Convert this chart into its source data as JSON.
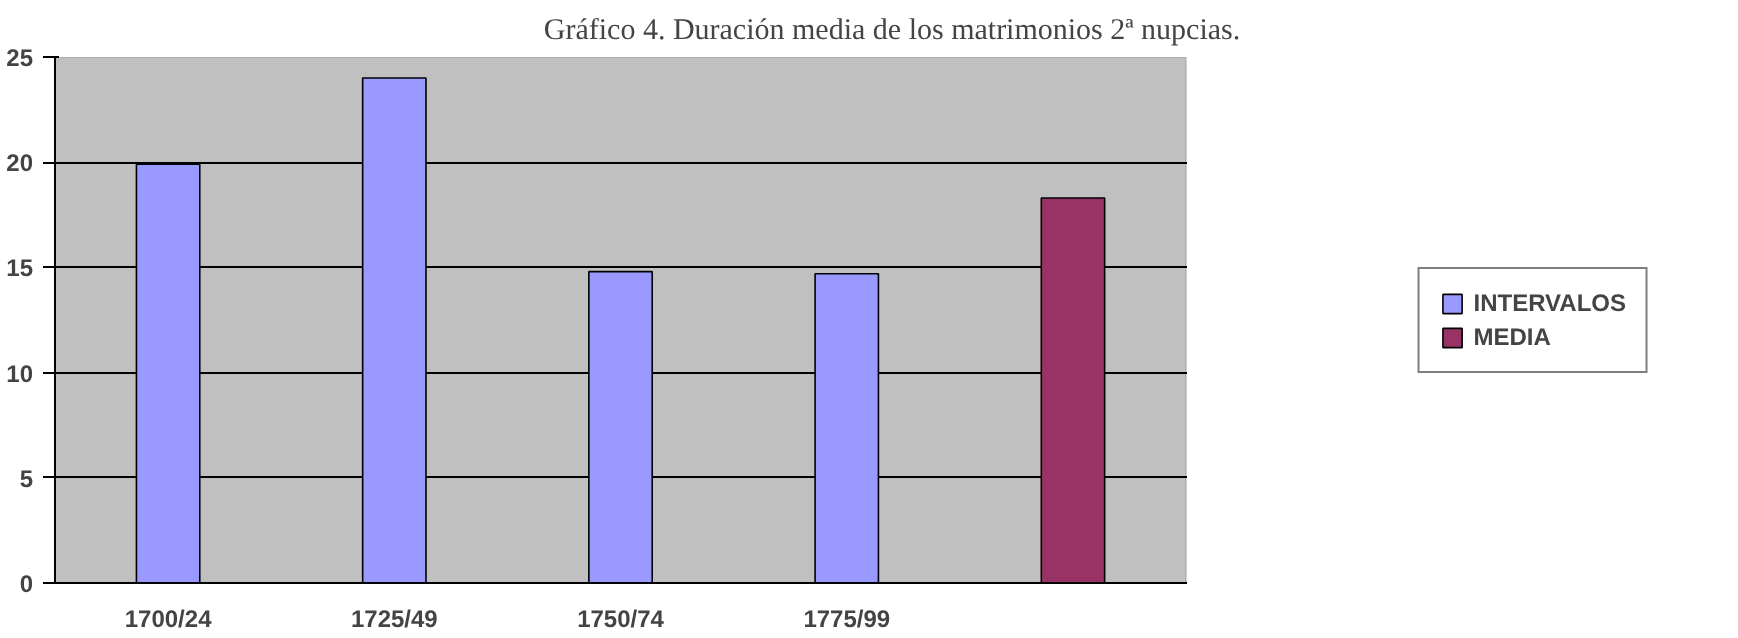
{
  "chart_data": {
    "type": "bar",
    "title": "Gráfico 4. Duración media de los matrimonios 2ª nupcias.",
    "categories": [
      "1700/24",
      "1725/49",
      "1750/74",
      "1775/99",
      null
    ],
    "series": [
      {
        "name": "INTERVALOS",
        "color": "#9999ff",
        "values": [
          19.9,
          24.0,
          14.8,
          14.7,
          null
        ]
      },
      {
        "name": "MEDIA",
        "color": "#993366",
        "values": [
          null,
          null,
          null,
          null,
          18.3
        ]
      }
    ],
    "ylim": [
      0,
      25
    ],
    "yticks": [
      0,
      5,
      10,
      15,
      20,
      25
    ],
    "grid": "y",
    "legend": "right"
  }
}
